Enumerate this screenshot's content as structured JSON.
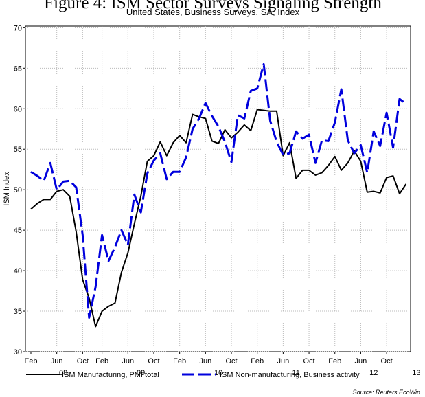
{
  "chart_data": {
    "type": "line",
    "title": "Figure 4: ISM Sector Surveys Signaling Strength",
    "subtitle": "United States, Business Surveys, SA, Index",
    "y_label": "ISM Index",
    "source": "Source: Reuters EcoWin",
    "categories": [
      "Feb",
      null,
      null,
      null,
      "Jun",
      null,
      null,
      null,
      "Oct",
      null,
      null,
      "Feb",
      null,
      null,
      null,
      "Jun",
      null,
      null,
      null,
      "Oct",
      null,
      null,
      null,
      "Feb",
      null,
      null,
      null,
      "Jun",
      null,
      null,
      null,
      "Oct",
      null,
      null,
      null,
      "Feb",
      null,
      null,
      null,
      "Jun",
      null,
      null,
      null,
      "Oct",
      null,
      null,
      null,
      "Feb",
      null,
      null,
      null,
      "Jun",
      null,
      null,
      null,
      "Oct",
      null,
      null,
      null
    ],
    "x_groups": [
      "08",
      "09",
      "10",
      "11",
      "12",
      "13"
    ],
    "series": [
      {
        "name": "ISM Manufacturing, PMI total",
        "color": "#000000",
        "dash": false,
        "values": [
          47.6,
          48.3,
          48.8,
          48.8,
          49.8,
          50.0,
          49.2,
          44.8,
          38.9,
          36.6,
          33.1,
          35.0,
          35.6,
          36.0,
          39.8,
          42.2,
          45.8,
          49.2,
          53.5,
          54.2,
          55.9,
          54.2,
          55.8,
          56.7,
          55.8,
          59.3,
          59.0,
          58.8,
          56.0,
          55.7,
          57.4,
          56.4,
          57.1,
          58.0,
          57.3,
          59.9,
          59.8,
          59.7,
          59.7,
          54.2,
          55.8,
          51.4,
          52.4,
          52.4,
          51.8,
          52.1,
          53.0,
          54.1,
          52.4,
          53.3,
          54.8,
          53.5,
          49.7,
          49.8,
          49.6,
          51.5,
          51.7,
          49.5,
          50.7
        ]
      },
      {
        "name": "ISM Non-manufacturing, Business activity",
        "color": "#0000dd",
        "dash": true,
        "values": [
          52.2,
          51.7,
          51.1,
          53.3,
          50.0,
          51.0,
          51.1,
          50.3,
          44.4,
          34.2,
          38.0,
          44.4,
          41.2,
          42.9,
          45.0,
          43.2,
          49.4,
          47.2,
          52.0,
          53.6,
          54.5,
          51.3,
          52.2,
          52.2,
          54.0,
          57.5,
          58.8,
          60.7,
          59.1,
          57.8,
          55.9,
          53.4,
          59.2,
          58.8,
          62.2,
          62.5,
          65.5,
          58.5,
          55.9,
          54.3,
          54.5,
          57.2,
          56.3,
          56.8,
          53.3,
          56.1,
          56.0,
          58.3,
          62.4,
          56.1,
          54.5,
          55.5,
          52.1,
          57.2,
          55.4,
          59.5,
          55.2,
          61.2,
          60.6
        ]
      }
    ],
    "ylim": [
      30,
      70.2
    ],
    "yticks": [
      30,
      35,
      40,
      45,
      50,
      55,
      60,
      65,
      70
    ],
    "grid": true
  }
}
